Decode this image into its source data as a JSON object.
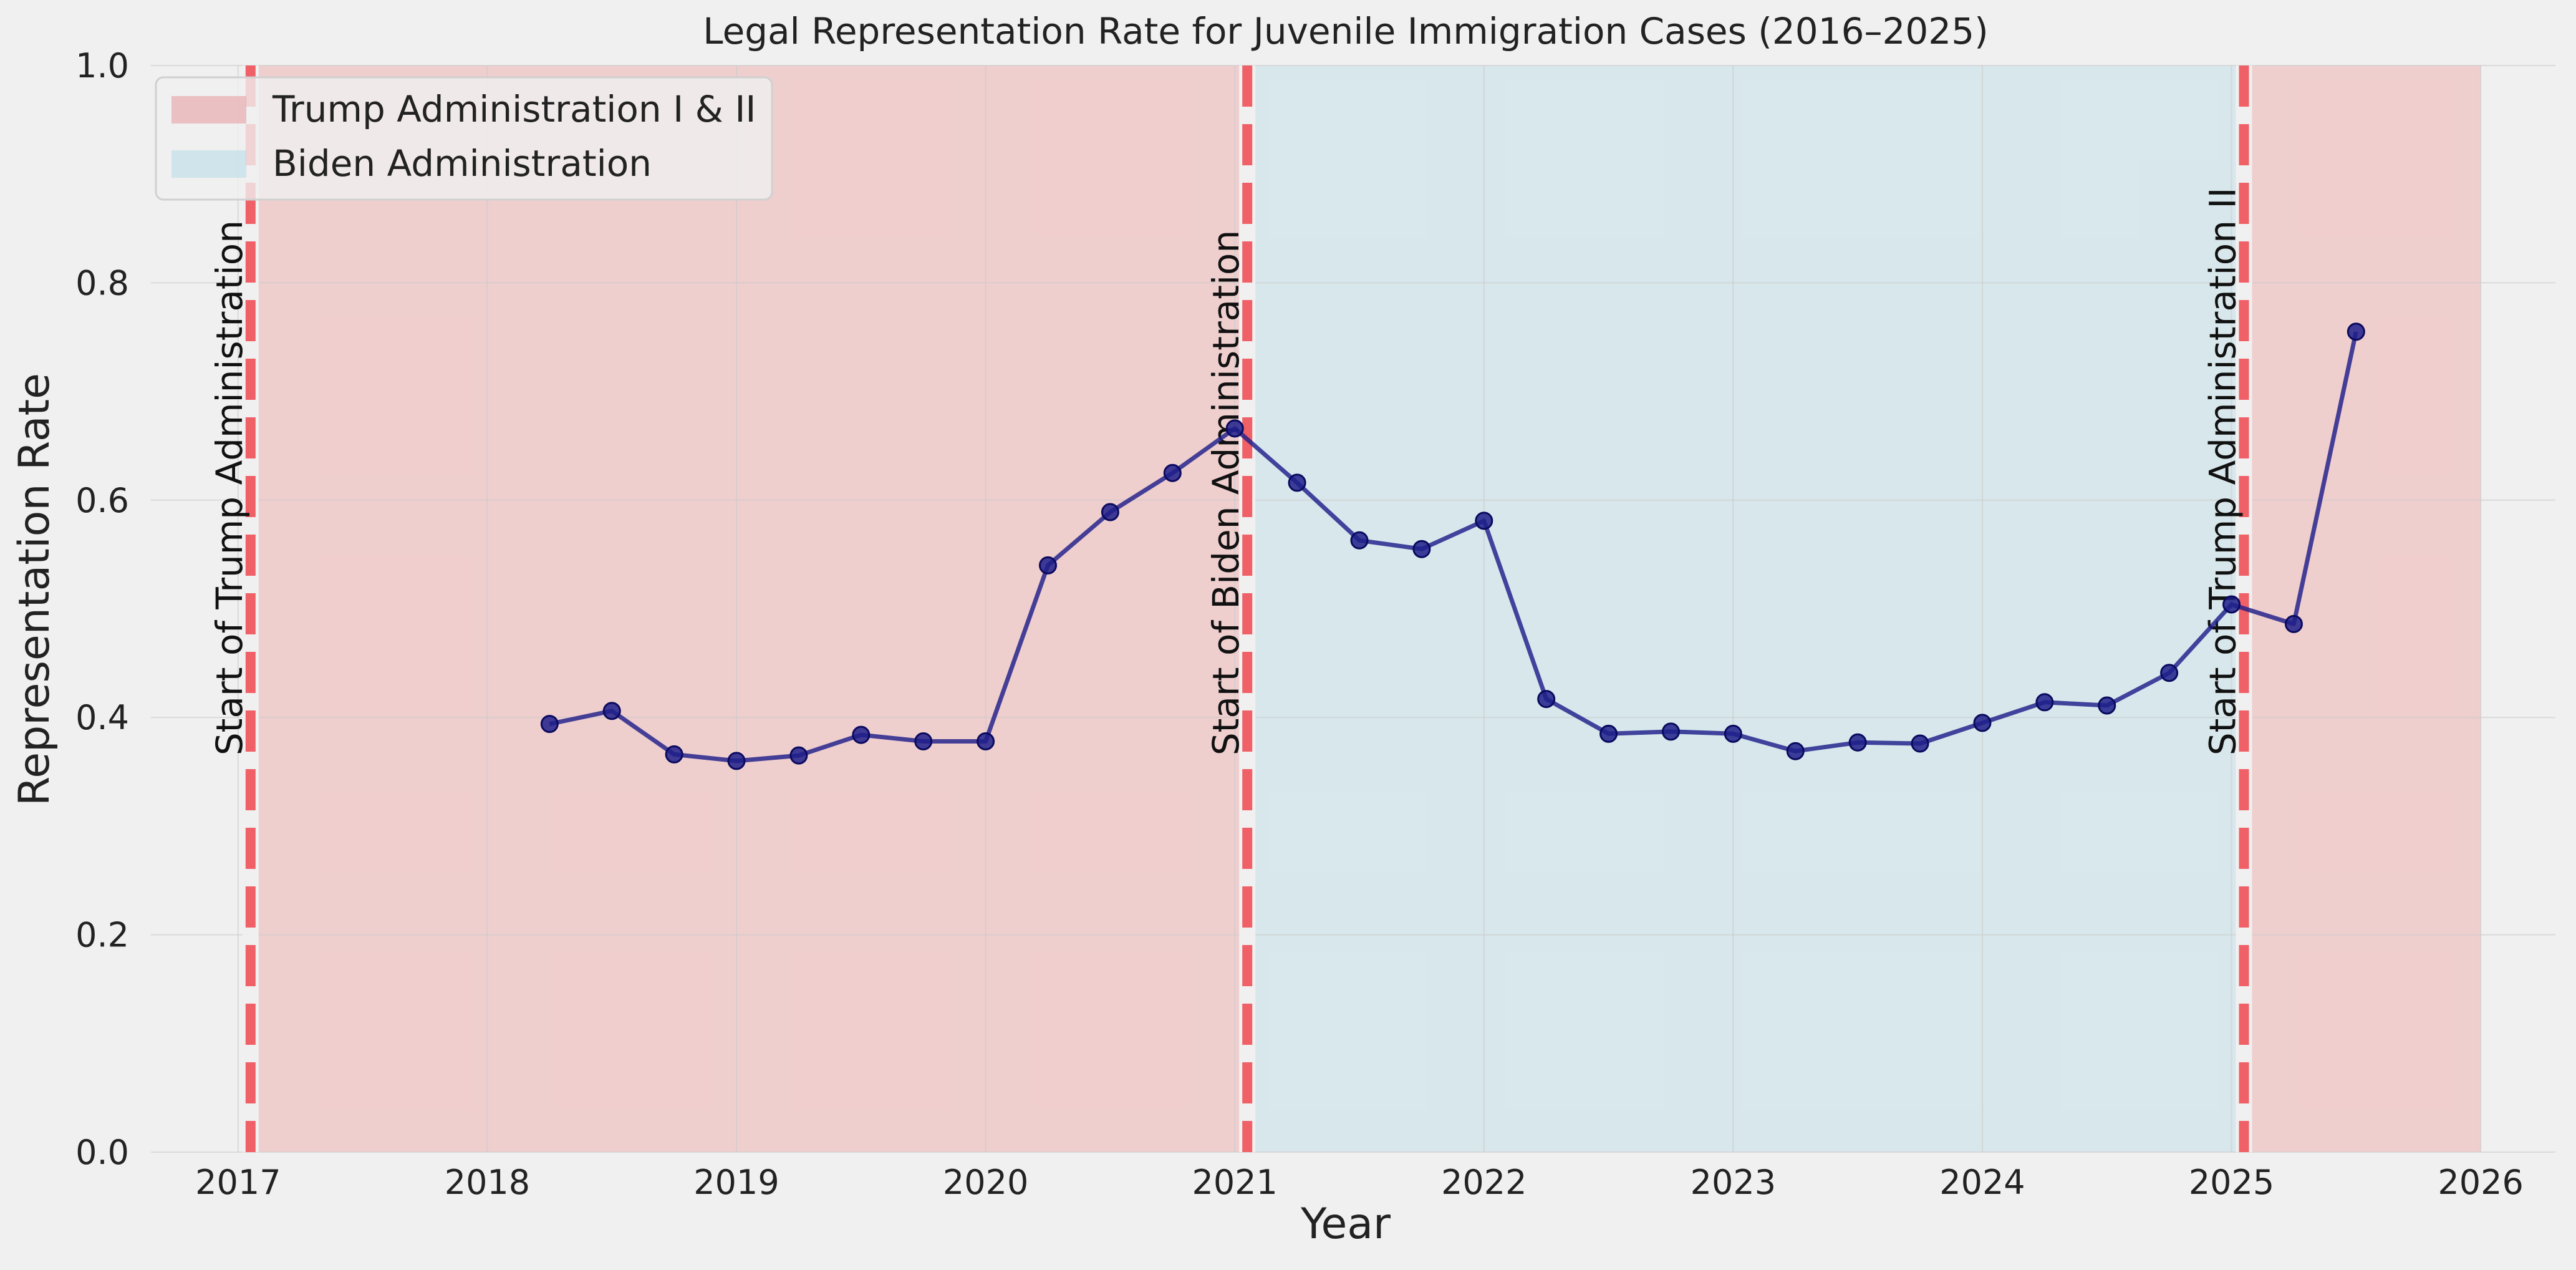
{
  "chart_data": {
    "type": "line",
    "title": "Legal Representation Rate for Juvenile Immigration Cases (2016–2025)",
    "xlabel": "Year",
    "ylabel": "Representation Rate",
    "xlim": [
      2016.65,
      2026.3
    ],
    "ylim": [
      0.0,
      1.0
    ],
    "xticks": [
      2017,
      2018,
      2019,
      2020,
      2021,
      2022,
      2023,
      2024,
      2025,
      2026
    ],
    "xtick_labels": [
      "2017",
      "2018",
      "2019",
      "2020",
      "2021",
      "2022",
      "2023",
      "2024",
      "2025",
      "2026"
    ],
    "yticks": [
      0.0,
      0.2,
      0.4,
      0.6,
      0.8,
      1.0
    ],
    "ytick_labels": [
      "0.0",
      "0.2",
      "0.4",
      "0.6",
      "0.8",
      "1.0"
    ],
    "grid": true,
    "legend_position": "top-left",
    "legend": [
      {
        "label": "Trump Administration I & II",
        "color": "#e8a0a4",
        "opacity": 0.45
      },
      {
        "label": "Biden Administration",
        "color": "#add8e6",
        "opacity": 0.35
      }
    ],
    "shaded_regions": [
      {
        "series": "Trump Administration I & II",
        "x_start": 2017.05,
        "x_end": 2021.05,
        "color": "#f08080"
      },
      {
        "series": "Biden Administration",
        "x_start": 2021.05,
        "x_end": 2025.05,
        "color": "#add8e6"
      },
      {
        "series": "Trump Administration I & II",
        "x_start": 2025.05,
        "x_end": 2026.0,
        "color": "#f08080"
      }
    ],
    "vlines": [
      {
        "x": 2017.05,
        "label": "Start of Trump Administration",
        "color": "#f05058"
      },
      {
        "x": 2021.05,
        "label": "Start of Biden Administration",
        "color": "#f05058"
      },
      {
        "x": 2025.05,
        "label": "Start of Trump Administration II",
        "color": "#f05058"
      }
    ],
    "series": [
      {
        "color": "#1f1f8a",
        "points": [
          {
            "x": 2018.25,
            "y": 0.394
          },
          {
            "x": 2018.5,
            "y": 0.406
          },
          {
            "x": 2018.75,
            "y": 0.366
          },
          {
            "x": 2019.0,
            "y": 0.36
          },
          {
            "x": 2019.25,
            "y": 0.365
          },
          {
            "x": 2019.5,
            "y": 0.384
          },
          {
            "x": 2019.75,
            "y": 0.378
          },
          {
            "x": 2020.0,
            "y": 0.378
          },
          {
            "x": 2020.25,
            "y": 0.54
          },
          {
            "x": 2020.5,
            "y": 0.589
          },
          {
            "x": 2020.75,
            "y": 0.625
          },
          {
            "x": 2021.0,
            "y": 0.666
          },
          {
            "x": 2021.25,
            "y": 0.616
          },
          {
            "x": 2021.5,
            "y": 0.563
          },
          {
            "x": 2021.75,
            "y": 0.555
          },
          {
            "x": 2022.0,
            "y": 0.581
          },
          {
            "x": 2022.25,
            "y": 0.417
          },
          {
            "x": 2022.5,
            "y": 0.385
          },
          {
            "x": 2022.75,
            "y": 0.387
          },
          {
            "x": 2023.0,
            "y": 0.385
          },
          {
            "x": 2023.25,
            "y": 0.369
          },
          {
            "x": 2023.5,
            "y": 0.377
          },
          {
            "x": 2023.75,
            "y": 0.376
          },
          {
            "x": 2024.0,
            "y": 0.395
          },
          {
            "x": 2024.25,
            "y": 0.414
          },
          {
            "x": 2024.5,
            "y": 0.411
          },
          {
            "x": 2024.75,
            "y": 0.441
          },
          {
            "x": 2025.0,
            "y": 0.504
          },
          {
            "x": 2025.25,
            "y": 0.486
          },
          {
            "x": 2025.5,
            "y": 0.755
          }
        ]
      }
    ]
  }
}
